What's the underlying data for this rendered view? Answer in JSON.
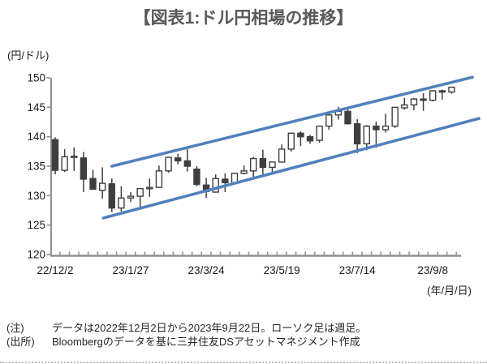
{
  "colors": {
    "trend_channel": "#4f81bd",
    "candle": "#3f3f3f",
    "axis": "#8f8f8f",
    "title": "#595959",
    "text": "#262626"
  },
  "chart_data": {
    "type": "candlestick",
    "title": "【図表1:ドル円相場の推移】",
    "timeframe": "weekly",
    "y_axis": {
      "unit_label": "(円/ドル)",
      "ticks": [
        150,
        145,
        140,
        135,
        130,
        125,
        120
      ],
      "min": 120,
      "max": 150,
      "grid": false
    },
    "x_axis": {
      "unit_label": "(年/月/日)",
      "tick_labels": [
        "22/12/2",
        "23/1/27",
        "23/3/24",
        "23/5/19",
        "23/7/14",
        "23/9/8"
      ],
      "label_week_indices": [
        0,
        8,
        16,
        24,
        32,
        40
      ],
      "minor_tick_count": 43
    },
    "weeks": [
      {
        "date": "22/12/2",
        "o": 139.5,
        "h": 139.9,
        "l": 133.6,
        "c": 134.3
      },
      {
        "date": "22/12/9",
        "o": 134.3,
        "h": 137.9,
        "l": 134.0,
        "c": 136.6
      },
      {
        "date": "22/12/16",
        "o": 136.5,
        "h": 138.2,
        "l": 134.2,
        "c": 136.7
      },
      {
        "date": "22/12/23",
        "o": 136.4,
        "h": 137.4,
        "l": 130.6,
        "c": 132.8
      },
      {
        "date": "22/12/30",
        "o": 132.9,
        "h": 134.4,
        "l": 131.0,
        "c": 131.1
      },
      {
        "date": "23/1/6",
        "o": 130.9,
        "h": 134.8,
        "l": 129.5,
        "c": 132.1
      },
      {
        "date": "23/1/13",
        "o": 132.0,
        "h": 132.9,
        "l": 127.2,
        "c": 127.9
      },
      {
        "date": "23/1/20",
        "o": 127.9,
        "h": 131.6,
        "l": 127.3,
        "c": 129.6
      },
      {
        "date": "23/1/27",
        "o": 129.6,
        "h": 130.6,
        "l": 128.9,
        "c": 129.9
      },
      {
        "date": "23/2/3",
        "o": 129.9,
        "h": 131.2,
        "l": 128.1,
        "c": 131.2
      },
      {
        "date": "23/2/10",
        "o": 131.3,
        "h": 132.9,
        "l": 129.8,
        "c": 131.4
      },
      {
        "date": "23/2/17",
        "o": 131.4,
        "h": 135.1,
        "l": 131.3,
        "c": 134.2
      },
      {
        "date": "23/2/24",
        "o": 134.2,
        "h": 136.6,
        "l": 133.9,
        "c": 136.5
      },
      {
        "date": "23/3/3",
        "o": 136.4,
        "h": 137.1,
        "l": 135.3,
        "c": 135.9
      },
      {
        "date": "23/3/10",
        "o": 135.9,
        "h": 137.9,
        "l": 134.1,
        "c": 135.0
      },
      {
        "date": "23/3/17",
        "o": 134.5,
        "h": 135.0,
        "l": 131.6,
        "c": 131.9
      },
      {
        "date": "23/3/24",
        "o": 131.8,
        "h": 133.0,
        "l": 129.6,
        "c": 130.7
      },
      {
        "date": "23/3/31",
        "o": 130.6,
        "h": 133.6,
        "l": 130.5,
        "c": 132.9
      },
      {
        "date": "23/4/7",
        "o": 132.8,
        "h": 133.8,
        "l": 130.6,
        "c": 132.2
      },
      {
        "date": "23/4/14",
        "o": 132.2,
        "h": 133.9,
        "l": 131.9,
        "c": 133.8
      },
      {
        "date": "23/4/21",
        "o": 133.8,
        "h": 135.1,
        "l": 133.6,
        "c": 134.2
      },
      {
        "date": "23/4/28",
        "o": 134.2,
        "h": 136.6,
        "l": 133.0,
        "c": 136.3
      },
      {
        "date": "23/5/5",
        "o": 136.3,
        "h": 137.8,
        "l": 133.5,
        "c": 134.8
      },
      {
        "date": "23/5/12",
        "o": 134.8,
        "h": 135.8,
        "l": 133.7,
        "c": 135.7
      },
      {
        "date": "23/5/19",
        "o": 135.7,
        "h": 138.7,
        "l": 135.6,
        "c": 137.9
      },
      {
        "date": "23/5/26",
        "o": 137.9,
        "h": 140.7,
        "l": 137.5,
        "c": 140.6
      },
      {
        "date": "23/6/2",
        "o": 140.6,
        "h": 140.9,
        "l": 138.4,
        "c": 140.0
      },
      {
        "date": "23/6/9",
        "o": 140.0,
        "h": 140.3,
        "l": 138.8,
        "c": 139.3
      },
      {
        "date": "23/6/16",
        "o": 139.4,
        "h": 141.9,
        "l": 139.0,
        "c": 141.8
      },
      {
        "date": "23/6/23",
        "o": 141.8,
        "h": 143.9,
        "l": 141.2,
        "c": 143.7
      },
      {
        "date": "23/6/30",
        "o": 143.7,
        "h": 145.1,
        "l": 142.9,
        "c": 144.3
      },
      {
        "date": "23/7/7",
        "o": 144.3,
        "h": 145.0,
        "l": 142.1,
        "c": 142.2
      },
      {
        "date": "23/7/14",
        "o": 142.2,
        "h": 143.0,
        "l": 137.2,
        "c": 138.8
      },
      {
        "date": "23/7/21",
        "o": 138.8,
        "h": 142.0,
        "l": 137.7,
        "c": 141.8
      },
      {
        "date": "23/7/28",
        "o": 141.8,
        "h": 142.6,
        "l": 138.1,
        "c": 141.2
      },
      {
        "date": "23/8/4",
        "o": 141.2,
        "h": 143.9,
        "l": 140.7,
        "c": 141.8
      },
      {
        "date": "23/8/11",
        "o": 141.8,
        "h": 145.0,
        "l": 141.5,
        "c": 145.0
      },
      {
        "date": "23/8/18",
        "o": 144.9,
        "h": 146.6,
        "l": 144.6,
        "c": 145.4
      },
      {
        "date": "23/8/25",
        "o": 145.4,
        "h": 146.6,
        "l": 144.5,
        "c": 146.4
      },
      {
        "date": "23/9/1",
        "o": 146.4,
        "h": 147.4,
        "l": 144.4,
        "c": 146.2
      },
      {
        "date": "23/9/8",
        "o": 146.2,
        "h": 147.9,
        "l": 146.0,
        "c": 147.8
      },
      {
        "date": "23/9/15",
        "o": 147.8,
        "h": 148.0,
        "l": 146.3,
        "c": 147.6
      },
      {
        "date": "23/9/22",
        "o": 147.6,
        "h": 148.5,
        "l": 147.3,
        "c": 148.4
      }
    ],
    "trend_channel": {
      "color": "#4f81bd",
      "upper": {
        "from_week": 6.0,
        "from_value": 135.0,
        "to_week": 44.2,
        "to_value": 150.1
      },
      "lower": {
        "from_week": 5.1,
        "from_value": 126.2,
        "to_week": 44.9,
        "to_value": 143.1
      }
    }
  },
  "notes": [
    {
      "label": "(注)",
      "text": "データは2022年12月2日から2023年9月22日。ローソク足は週足。"
    },
    {
      "label": "(出所)",
      "text": "Bloombergのデータを基に三井住友DSアセットマネジメント作成"
    }
  ]
}
